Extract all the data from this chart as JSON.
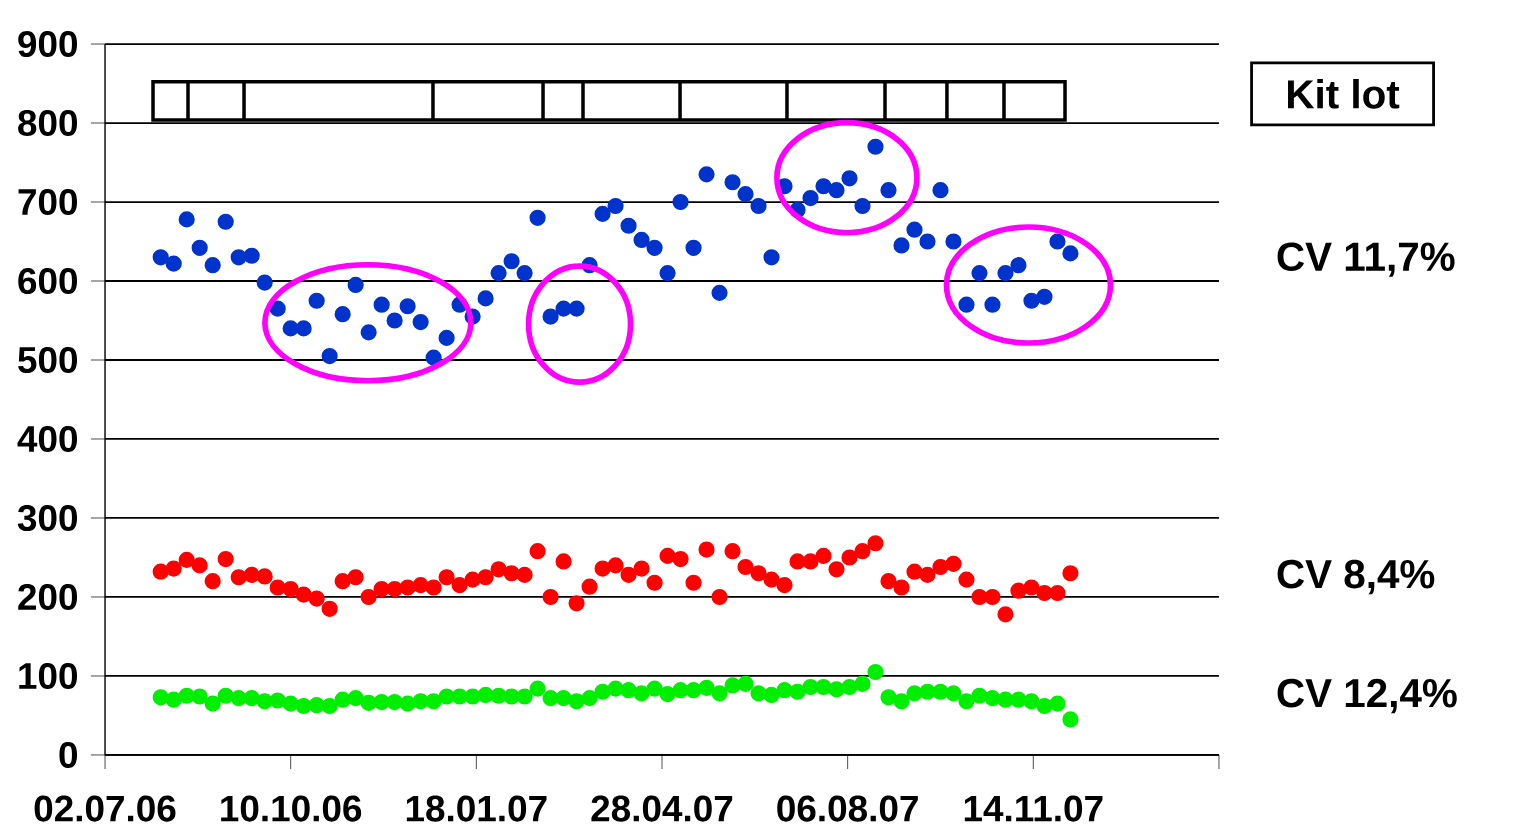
{
  "chart_data": {
    "type": "scatter",
    "x": [
      "2006-08-01",
      "2006-08-08",
      "2006-08-15",
      "2006-08-22",
      "2006-08-29",
      "2006-09-05",
      "2006-09-12",
      "2006-09-19",
      "2006-09-26",
      "2006-10-03",
      "2006-10-10",
      "2006-10-17",
      "2006-10-24",
      "2006-10-31",
      "2006-11-07",
      "2006-11-14",
      "2006-11-21",
      "2006-11-28",
      "2006-12-05",
      "2006-12-12",
      "2006-12-19",
      "2006-12-26",
      "2007-01-02",
      "2007-01-09",
      "2007-01-16",
      "2007-01-23",
      "2007-01-30",
      "2007-02-06",
      "2007-02-13",
      "2007-02-20",
      "2007-02-27",
      "2007-03-06",
      "2007-03-13",
      "2007-03-20",
      "2007-03-27",
      "2007-04-03",
      "2007-04-10",
      "2007-04-17",
      "2007-04-24",
      "2007-05-01",
      "2007-05-08",
      "2007-05-15",
      "2007-05-22",
      "2007-05-29",
      "2007-06-05",
      "2007-06-12",
      "2007-06-19",
      "2007-06-26",
      "2007-07-03",
      "2007-07-10",
      "2007-07-17",
      "2007-07-24",
      "2007-07-31",
      "2007-08-07",
      "2007-08-14",
      "2007-08-21",
      "2007-08-28",
      "2007-09-04",
      "2007-09-11",
      "2007-09-18",
      "2007-09-25",
      "2007-10-02",
      "2007-10-09",
      "2007-10-16",
      "2007-10-23",
      "2007-10-30",
      "2007-11-06",
      "2007-11-13",
      "2007-11-20",
      "2007-11-27",
      "2007-12-04"
    ],
    "series": [
      {
        "name": "CV 11,7%",
        "color": "#0033cc",
        "values": [
          630,
          622,
          678,
          642,
          620,
          675,
          630,
          632,
          598,
          565,
          540,
          540,
          575,
          505,
          558,
          595,
          535,
          570,
          550,
          568,
          548,
          503,
          528,
          570,
          555,
          578,
          610,
          625,
          610,
          680,
          555,
          565,
          565,
          620,
          685,
          695,
          670,
          652,
          642,
          610,
          700,
          642,
          735,
          585,
          725,
          710,
          695,
          630,
          720,
          690,
          705,
          720,
          715,
          730,
          695,
          770,
          715,
          645,
          665,
          650,
          715,
          650,
          570,
          610,
          570,
          610,
          620,
          575,
          580,
          650,
          635
        ]
      },
      {
        "name": "CV 8,4%",
        "color": "#ff0000",
        "values": [
          232,
          236,
          247,
          240,
          220,
          248,
          225,
          228,
          226,
          212,
          210,
          203,
          198,
          185,
          220,
          225,
          200,
          210,
          210,
          212,
          215,
          212,
          225,
          215,
          222,
          225,
          235,
          230,
          228,
          258,
          200,
          245,
          192,
          213,
          236,
          240,
          228,
          236,
          218,
          252,
          248,
          218,
          260,
          200,
          258,
          238,
          230,
          222,
          215,
          245,
          245,
          252,
          235,
          250,
          258,
          268,
          220,
          212,
          232,
          228,
          238,
          242,
          222,
          200,
          200,
          178,
          208,
          212,
          205,
          205,
          230
        ]
      },
      {
        "name": "CV 12,4%",
        "color": "#00ee00",
        "values": [
          73,
          70,
          75,
          74,
          65,
          75,
          72,
          72,
          68,
          69,
          65,
          62,
          63,
          62,
          70,
          72,
          66,
          67,
          67,
          65,
          68,
          68,
          74,
          74,
          74,
          76,
          75,
          74,
          74,
          84,
          72,
          72,
          68,
          72,
          80,
          84,
          82,
          78,
          84,
          77,
          82,
          82,
          85,
          78,
          88,
          90,
          78,
          76,
          82,
          80,
          86,
          86,
          83,
          86,
          90,
          105,
          73,
          68,
          78,
          80,
          80,
          78,
          68,
          75,
          72,
          70,
          70,
          68,
          62,
          65,
          45
        ]
      }
    ],
    "xlim": [
      "2006-07-02",
      "2008-02-22"
    ],
    "xticks": [
      {
        "value": "2006-07-02",
        "label": "02.07.06"
      },
      {
        "value": "2006-10-10",
        "label": "10.10.06"
      },
      {
        "value": "2007-01-18",
        "label": "18.01.07"
      },
      {
        "value": "2007-04-28",
        "label": "28.04.07"
      },
      {
        "value": "2007-08-06",
        "label": "06.08.07"
      },
      {
        "value": "2007-11-14",
        "label": "14.11.07"
      },
      {
        "value": "2008-02-22",
        "label": null
      }
    ],
    "ylim": [
      0,
      900
    ],
    "yticks": [
      0,
      100,
      200,
      300,
      400,
      500,
      600,
      700,
      800,
      900
    ],
    "grid": "y",
    "marker": "circle",
    "legend": false,
    "annotations": [
      "Kit lot"
    ]
  }
}
